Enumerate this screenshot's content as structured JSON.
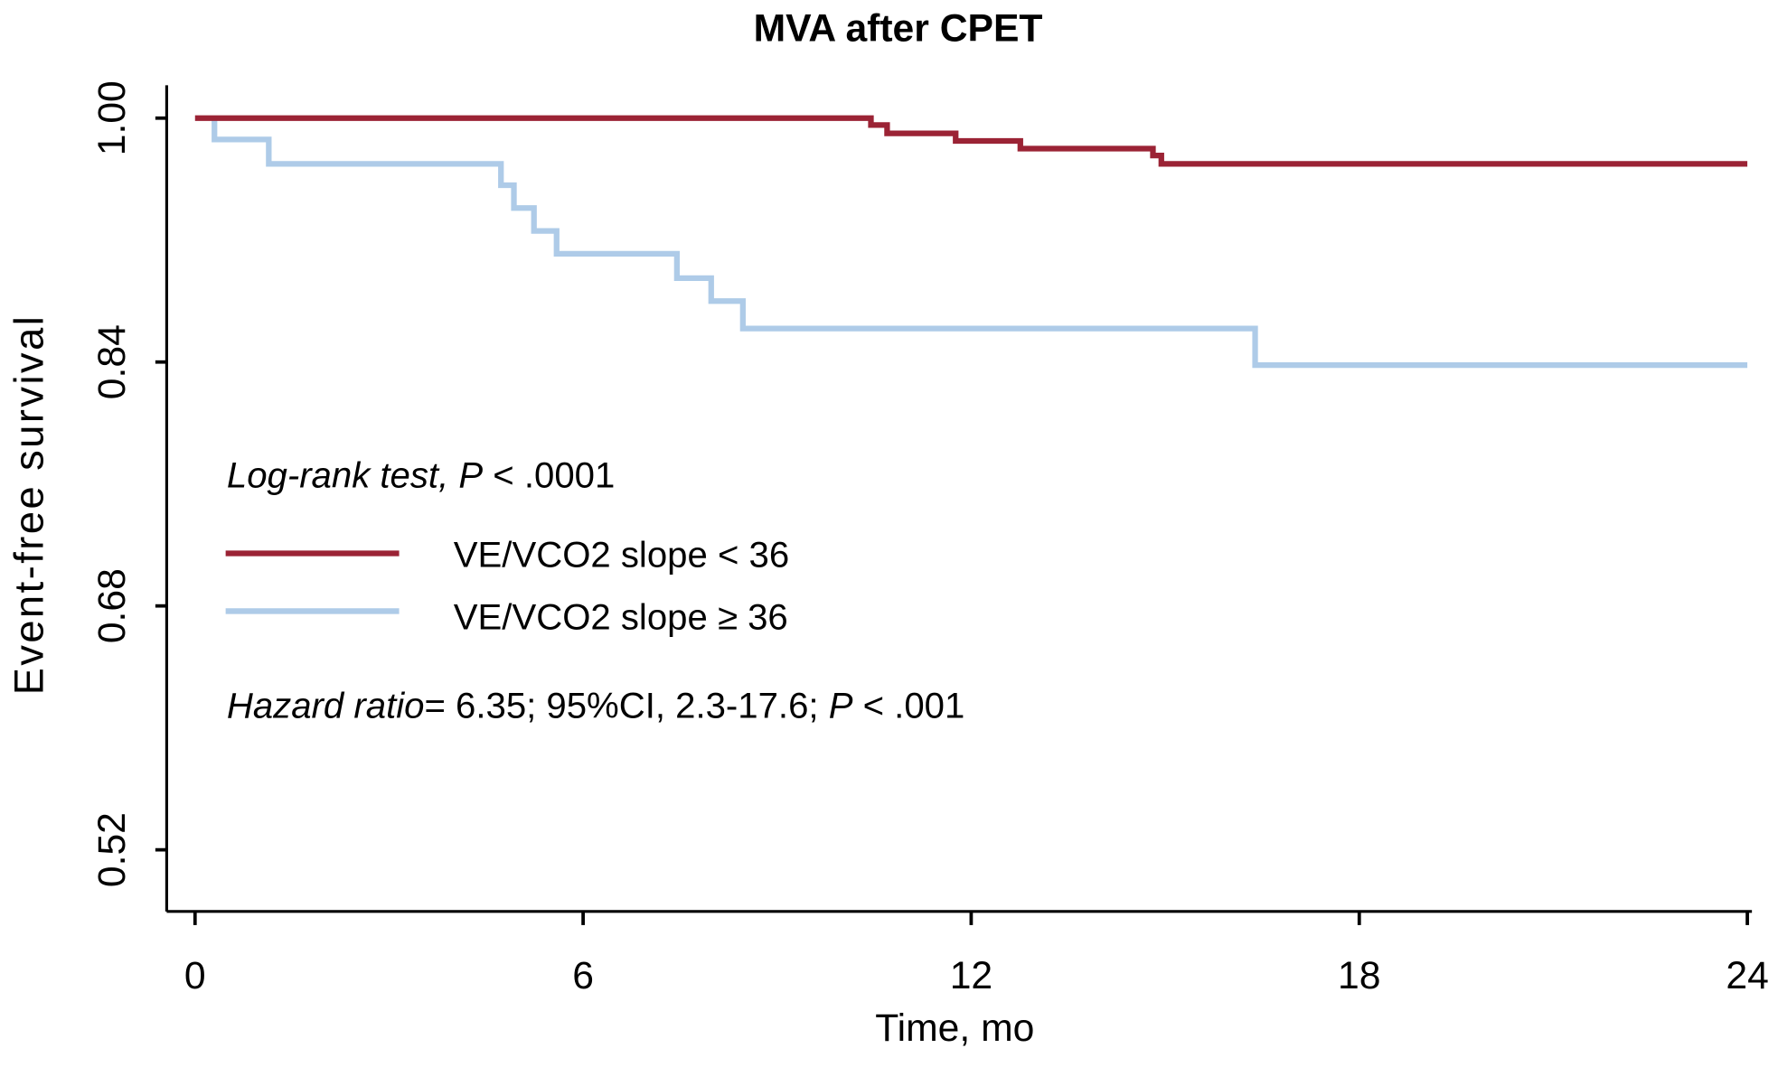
{
  "chart_data": {
    "type": "line",
    "subtype": "kaplan-meier step",
    "title": "MVA after CPET",
    "xlabel": "Time, mo",
    "ylabel": "Event-free survival",
    "xlim": [
      -0.45,
      24.1
    ],
    "ylim": [
      0.48,
      1.02
    ],
    "xticks": [
      0,
      6,
      12,
      18,
      24
    ],
    "xtick_labels": [
      "0",
      "6",
      "12",
      "18",
      "24"
    ],
    "yticks": [
      1.0,
      0.84,
      0.68,
      0.52
    ],
    "ytick_labels": [
      "1.00",
      "0.84",
      "0.68",
      "0.52"
    ],
    "grid": false,
    "legend_placement": "center-left",
    "annotations": {
      "logrank": {
        "italic": "Log-rank test, ",
        "italic_p": "P",
        "rest": " < .0001"
      },
      "hazard": {
        "italic": "Hazard ratio",
        "rest1": "= 6.35; 95%CI, 2.3-17.6; ",
        "italic_p": "P",
        "rest2": " < .001"
      }
    },
    "series": [
      {
        "name": "VE/VCO2 slope < 36",
        "color": "#9b2335",
        "x": [
          0,
          10.45,
          10.7,
          11.76,
          12.76,
          14.81,
          14.94,
          24
        ],
        "y": [
          1.0,
          0.9955,
          0.99,
          0.985,
          0.98,
          0.9755,
          0.97,
          0.97
        ]
      },
      {
        "name": "VE/VCO2 slope ≥ 36",
        "color": "#aecbe8",
        "x": [
          0.3,
          0.3,
          1.14,
          4.73,
          4.93,
          5.24,
          5.59,
          7.45,
          7.98,
          8.47,
          16.39,
          24
        ],
        "y": [
          1.0,
          0.986,
          0.97,
          0.956,
          0.941,
          0.926,
          0.911,
          0.895,
          0.88,
          0.862,
          0.838,
          0.838
        ]
      }
    ]
  }
}
